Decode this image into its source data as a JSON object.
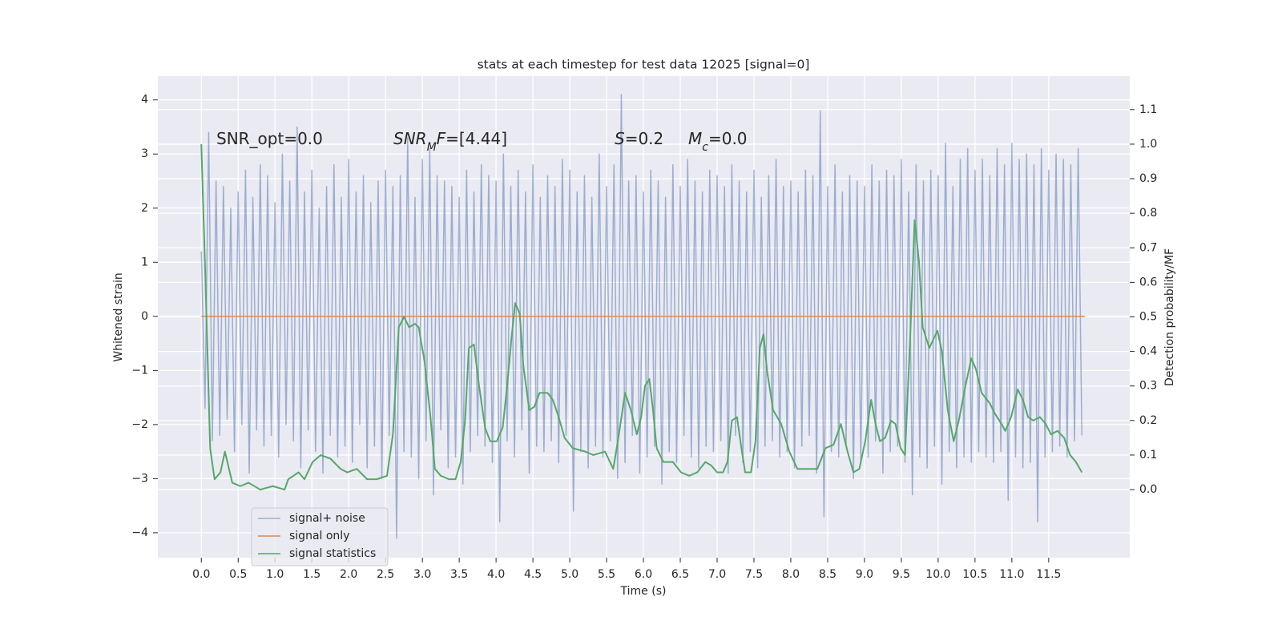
{
  "chart_data": {
    "type": "line",
    "title": "stats at each timestep for test data 12025 [signal=0]",
    "xlabel": "Time (s)",
    "ylabel": "Whitened strain",
    "y2label": "Detection probability/MF",
    "grid": true,
    "legend": "lower left",
    "xlim": [
      -0.59,
      12.6
    ],
    "xticks": [
      {
        "value": 0,
        "label": "0.0"
      },
      0.5,
      {
        "value": 1,
        "label": "1.0"
      },
      1.5,
      {
        "value": 2,
        "label": "2.0"
      },
      2.5,
      {
        "value": 3,
        "label": "3.0"
      },
      3.5,
      {
        "value": 4,
        "label": "4.0"
      },
      4.5,
      {
        "value": 5,
        "label": "5.0"
      },
      5.5,
      {
        "value": 6,
        "label": "6.0"
      },
      6.5,
      {
        "value": 7,
        "label": "7.0"
      },
      7.5,
      {
        "value": 8,
        "label": "8.0"
      },
      8.5,
      {
        "value": 9,
        "label": "9.0"
      },
      9.5,
      {
        "value": 10,
        "label": "10.0"
      },
      10.5,
      {
        "value": 11,
        "label": "11.0"
      },
      11.5
    ],
    "ylim": [
      -4.46,
      4.44
    ],
    "yticks": [
      {
        "value": -4,
        "label": "−4"
      },
      {
        "value": -3,
        "label": "−3"
      },
      {
        "value": -2,
        "label": "−2"
      },
      {
        "value": -1,
        "label": "−1"
      },
      0,
      1,
      2,
      3,
      4
    ],
    "y2lim": [
      -0.197,
      1.197
    ],
    "y2ticks": [
      {
        "value": 0,
        "label": "0.0"
      },
      0.1,
      0.2,
      0.3,
      0.4,
      0.5,
      0.6,
      0.7,
      0.8,
      0.9,
      {
        "value": 1,
        "label": "1.0"
      },
      1.1
    ],
    "annotations": [
      {
        "segments": [
          {
            "text": "SNR_opt=0.0"
          }
        ]
      },
      {
        "segments": [
          {
            "text": "SNR",
            "italic": true
          },
          {
            "text": "M",
            "italic": true,
            "sub": true
          },
          {
            "text": "F",
            "italic": true
          },
          {
            "text": "=[4.44]"
          }
        ]
      },
      {
        "segments": [
          {
            "text": "S",
            "italic": true
          },
          {
            "text": "=0.2"
          }
        ]
      },
      {
        "segments": [
          {
            "text": "M",
            "italic": true
          },
          {
            "text": "c",
            "italic": true,
            "sub": true
          },
          {
            "text": "=0.0"
          }
        ]
      }
    ],
    "series": [
      {
        "name": "signal+ noise",
        "color": "#4c72b0",
        "alpha": 0.5,
        "x": [
          0,
          0.05,
          0.1,
          0.15,
          0.2,
          0.25,
          0.3,
          0.35,
          0.4,
          0.45,
          0.5,
          0.55,
          0.6,
          0.65,
          0.7,
          0.75,
          0.8,
          0.85,
          0.9,
          0.95,
          1,
          1.05,
          1.1,
          1.15,
          1.2,
          1.25,
          1.3,
          1.35,
          1.4,
          1.45,
          1.5,
          1.55,
          1.6,
          1.65,
          1.7,
          1.75,
          1.8,
          1.85,
          1.9,
          1.95,
          2,
          2.05,
          2.1,
          2.15,
          2.2,
          2.25,
          2.3,
          2.35,
          2.4,
          2.45,
          2.5,
          2.55,
          2.6,
          2.65,
          2.7,
          2.75,
          2.8,
          2.85,
          2.9,
          2.95,
          3,
          3.05,
          3.1,
          3.15,
          3.2,
          3.25,
          3.3,
          3.35,
          3.4,
          3.45,
          3.5,
          3.55,
          3.6,
          3.65,
          3.7,
          3.75,
          3.8,
          3.85,
          3.9,
          3.95,
          4,
          4.05,
          4.1,
          4.15,
          4.2,
          4.25,
          4.3,
          4.35,
          4.4,
          4.45,
          4.5,
          4.55,
          4.6,
          4.65,
          4.7,
          4.75,
          4.8,
          4.85,
          4.9,
          4.95,
          5,
          5.05,
          5.1,
          5.15,
          5.2,
          5.25,
          5.3,
          5.35,
          5.4,
          5.45,
          5.5,
          5.55,
          5.6,
          5.65,
          5.7,
          5.75,
          5.8,
          5.85,
          5.9,
          5.95,
          6,
          6.05,
          6.1,
          6.15,
          6.2,
          6.25,
          6.3,
          6.35,
          6.4,
          6.45,
          6.5,
          6.55,
          6.6,
          6.65,
          6.7,
          6.75,
          6.8,
          6.85,
          6.9,
          6.95,
          7,
          7.05,
          7.1,
          7.15,
          7.2,
          7.25,
          7.3,
          7.35,
          7.4,
          7.45,
          7.5,
          7.55,
          7.6,
          7.65,
          7.7,
          7.75,
          7.8,
          7.85,
          7.9,
          7.95,
          8,
          8.05,
          8.1,
          8.15,
          8.2,
          8.25,
          8.3,
          8.35,
          8.4,
          8.45,
          8.5,
          8.55,
          8.6,
          8.65,
          8.7,
          8.75,
          8.8,
          8.85,
          8.9,
          8.95,
          9,
          9.05,
          9.1,
          9.15,
          9.2,
          9.25,
          9.3,
          9.35,
          9.4,
          9.45,
          9.5,
          9.55,
          9.6,
          9.65,
          9.7,
          9.75,
          9.8,
          9.85,
          9.9,
          9.95,
          10,
          10.05,
          10.1,
          10.15,
          10.2,
          10.25,
          10.3,
          10.35,
          10.4,
          10.45,
          10.5,
          10.55,
          10.6,
          10.65,
          10.7,
          10.75,
          10.8,
          10.85,
          10.9,
          10.95,
          11,
          11.05,
          11.1,
          11.15,
          11.2,
          11.25,
          11.3,
          11.35,
          11.4,
          11.45,
          11.5,
          11.55,
          11.6,
          11.65,
          11.7,
          11.75,
          11.8,
          11.85,
          11.9,
          11.95
        ],
        "values": [
          1.2,
          -1.7,
          3.4,
          -2.3,
          2.5,
          -2.2,
          2.4,
          -1.9,
          2.0,
          -2.5,
          2.3,
          -2.0,
          2.7,
          -2.9,
          2.2,
          -2.1,
          2.8,
          -2.4,
          2.6,
          -2.2,
          2.1,
          -2.6,
          3.0,
          -2.0,
          2.5,
          -2.3,
          3.5,
          -2.8,
          2.3,
          -2.1,
          2.7,
          -2.5,
          2.0,
          -2.9,
          2.4,
          -2.2,
          2.8,
          -2.6,
          2.2,
          -2.4,
          2.9,
          -2.7,
          2.3,
          -2.0,
          2.6,
          -2.8,
          2.1,
          -2.4,
          2.5,
          -3.0,
          2.7,
          -2.2,
          2.4,
          -4.1,
          2.6,
          -2.5,
          3.3,
          -2.6,
          2.2,
          -3.0,
          2.9,
          -2.3,
          3.1,
          -3.3,
          2.6,
          -2.1,
          2.5,
          -2.8,
          2.4,
          -2.6,
          2.2,
          -3.1,
          2.7,
          -2.5,
          2.3,
          -2.2,
          2.8,
          -2.4,
          2.6,
          -2.7,
          2.5,
          -3.8,
          3.0,
          -2.3,
          2.4,
          -2.6,
          2.7,
          -2.1,
          2.3,
          -2.9,
          2.8,
          -2.4,
          2.2,
          -2.5,
          2.6,
          -2.3,
          2.4,
          -2.7,
          2.9,
          -2.2,
          2.7,
          -3.6,
          2.3,
          -2.5,
          2.6,
          -2.8,
          2.2,
          -2.4,
          3.0,
          -2.6,
          2.4,
          -2.3,
          2.8,
          -3.0,
          4.1,
          -2.7,
          2.5,
          -2.2,
          2.6,
          -2.9,
          2.3,
          -2.6,
          2.7,
          -2.4,
          2.5,
          -3.1,
          2.2,
          -2.5,
          2.8,
          -2.7,
          2.4,
          -2.2,
          2.9,
          -2.6,
          2.5,
          -2.8,
          2.3,
          -2.4,
          2.7,
          -2.5,
          2.6,
          -2.3,
          2.4,
          -2.9,
          2.8,
          -2.2,
          2.5,
          -2.7,
          2.3,
          -2.5,
          2.7,
          -2.8,
          2.2,
          -2.4,
          2.6,
          -2.3,
          2.9,
          -2.6,
          2.4,
          -2.5,
          2.5,
          -2.8,
          2.3,
          -2.4,
          2.7,
          -2.2,
          2.6,
          -2.9,
          3.8,
          -3.7,
          2.4,
          -2.5,
          2.8,
          -2.6,
          2.3,
          -2.4,
          2.6,
          -3.0,
          2.5,
          -2.7,
          2.4,
          -2.6,
          2.8,
          -2.3,
          2.5,
          -2.9,
          2.7,
          -2.5,
          2.6,
          -2.4,
          2.9,
          -2.7,
          2.3,
          -3.3,
          2.8,
          -2.6,
          2.5,
          -2.8,
          2.7,
          -2.4,
          2.6,
          -3.1,
          3.2,
          -2.5,
          2.4,
          -2.8,
          2.9,
          -2.6,
          3.1,
          -2.7,
          2.7,
          -2.5,
          2.9,
          -2.6,
          2.6,
          -2.7,
          3.1,
          -2.5,
          2.8,
          -3.4,
          3.2,
          -2.6,
          2.9,
          -2.8,
          3.0,
          -2.7,
          2.8,
          -3.8,
          3.1,
          -2.6,
          2.7,
          -2.5,
          3.0,
          -2.4,
          2.9,
          -2.6,
          2.8,
          -2.3,
          3.1,
          -2.2
        ]
      },
      {
        "name": "signal only",
        "color": "#dd8452",
        "x": [
          0,
          11.99
        ],
        "values": [
          0,
          0
        ]
      },
      {
        "name": "signal statistics",
        "color": "#55a868",
        "axis": "y2",
        "x": [
          0,
          0.05,
          0.12,
          0.18,
          0.26,
          0.32,
          0.42,
          0.53,
          0.64,
          0.8,
          0.97,
          1.13,
          1.18,
          1.25,
          1.32,
          1.4,
          1.51,
          1.62,
          1.75,
          1.89,
          1.98,
          2.11,
          2.25,
          2.38,
          2.52,
          2.6,
          2.68,
          2.75,
          2.82,
          2.9,
          2.95,
          3.03,
          3.11,
          3.17,
          3.25,
          3.36,
          3.45,
          3.52,
          3.58,
          3.63,
          3.7,
          3.77,
          3.85,
          3.92,
          4.01,
          4.09,
          4.15,
          4.21,
          4.26,
          4.32,
          4.37,
          4.45,
          4.52,
          4.59,
          4.7,
          4.77,
          4.85,
          4.93,
          5.04,
          5.21,
          5.32,
          5.48,
          5.59,
          5.66,
          5.75,
          5.83,
          5.91,
          5.97,
          6.02,
          6.08,
          6.13,
          6.18,
          6.27,
          6.4,
          6.51,
          6.62,
          6.73,
          6.84,
          6.92,
          7,
          7.08,
          7.14,
          7.2,
          7.27,
          7.33,
          7.38,
          7.46,
          7.52,
          7.58,
          7.63,
          7.68,
          7.76,
          7.87,
          7.98,
          8.09,
          8.2,
          8.36,
          8.47,
          8.58,
          8.68,
          8.77,
          8.85,
          8.93,
          9.01,
          9.09,
          9.15,
          9.21,
          9.28,
          9.36,
          9.42,
          9.49,
          9.55,
          9.62,
          9.68,
          9.74,
          9.79,
          9.88,
          9.99,
          10.05,
          10.13,
          10.21,
          10.28,
          10.37,
          10.45,
          10.51,
          10.59,
          10.7,
          10.77,
          10.86,
          10.91,
          10.99,
          11.08,
          11.15,
          11.22,
          11.29,
          11.38,
          11.46,
          11.53,
          11.62,
          11.71,
          11.79,
          11.87,
          11.95
        ],
        "values": [
          1.0,
          0.65,
          0.12,
          0.03,
          0.05,
          0.11,
          0.02,
          0.01,
          0.02,
          0.0,
          0.01,
          0.0,
          0.03,
          0.04,
          0.05,
          0.03,
          0.08,
          0.1,
          0.09,
          0.06,
          0.05,
          0.06,
          0.03,
          0.03,
          0.04,
          0.16,
          0.47,
          0.5,
          0.47,
          0.48,
          0.47,
          0.37,
          0.21,
          0.06,
          0.04,
          0.03,
          0.03,
          0.08,
          0.2,
          0.41,
          0.42,
          0.3,
          0.18,
          0.14,
          0.14,
          0.18,
          0.3,
          0.44,
          0.54,
          0.51,
          0.36,
          0.23,
          0.24,
          0.28,
          0.28,
          0.26,
          0.21,
          0.15,
          0.12,
          0.11,
          0.1,
          0.11,
          0.06,
          0.15,
          0.28,
          0.23,
          0.16,
          0.21,
          0.3,
          0.32,
          0.23,
          0.12,
          0.08,
          0.08,
          0.05,
          0.04,
          0.05,
          0.08,
          0.07,
          0.05,
          0.05,
          0.08,
          0.2,
          0.21,
          0.12,
          0.05,
          0.05,
          0.14,
          0.41,
          0.45,
          0.34,
          0.23,
          0.19,
          0.11,
          0.06,
          0.06,
          0.06,
          0.12,
          0.13,
          0.19,
          0.11,
          0.05,
          0.06,
          0.14,
          0.26,
          0.19,
          0.14,
          0.15,
          0.2,
          0.19,
          0.12,
          0.1,
          0.44,
          0.78,
          0.66,
          0.47,
          0.41,
          0.46,
          0.4,
          0.23,
          0.14,
          0.2,
          0.3,
          0.38,
          0.35,
          0.28,
          0.25,
          0.22,
          0.19,
          0.17,
          0.21,
          0.29,
          0.26,
          0.21,
          0.2,
          0.21,
          0.19,
          0.16,
          0.17,
          0.15,
          0.1,
          0.08,
          0.05
        ]
      }
    ]
  }
}
